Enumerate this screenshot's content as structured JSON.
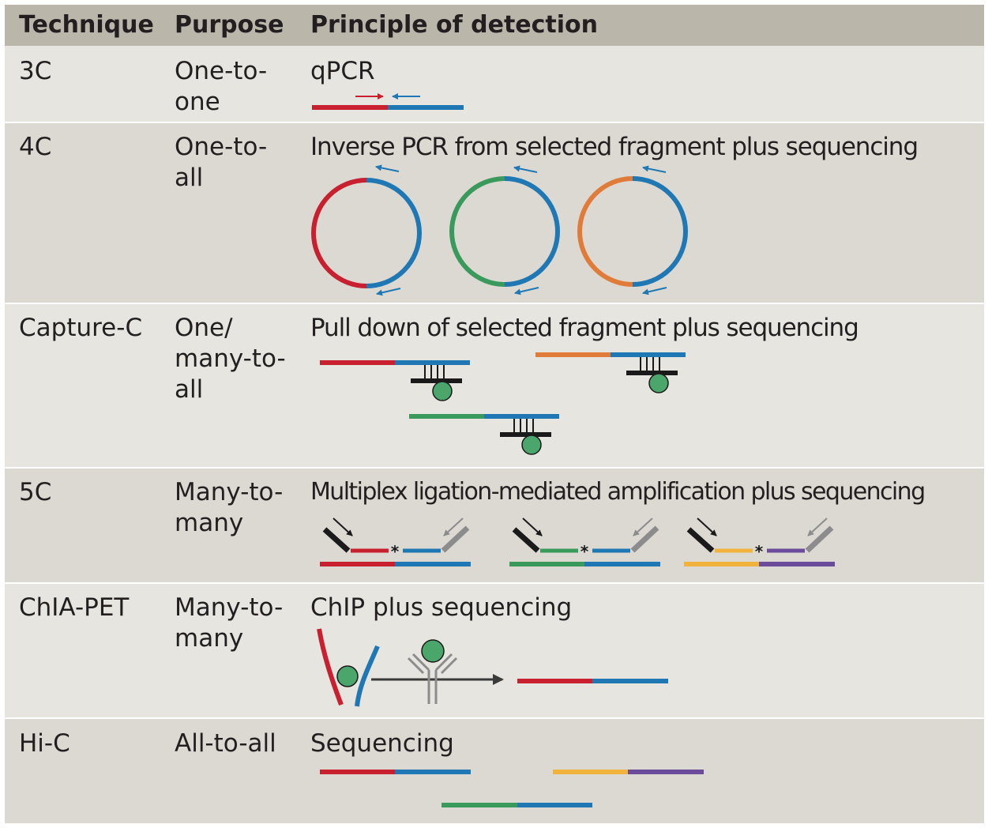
{
  "header": {
    "technique": "Technique",
    "purpose": "Purpose",
    "principle": "Principle of detection"
  },
  "rows": [
    {
      "technique": "3C",
      "purpose_lines": [
        "One-to-",
        "one"
      ],
      "principle": "qPCR"
    },
    {
      "technique": "4C",
      "purpose_lines": [
        "One-to-",
        "all"
      ],
      "principle": "Inverse PCR from selected fragment plus sequencing"
    },
    {
      "technique": "Capture-C",
      "purpose_lines": [
        "One/",
        "many-to-",
        "all"
      ],
      "principle": "Pull down of selected fragment plus sequencing"
    },
    {
      "technique": "5C",
      "purpose_lines": [
        "Many-to-",
        "many"
      ],
      "principle": "Multiplex ligation-mediated amplification plus sequencing"
    },
    {
      "technique": "ChIA-PET",
      "purpose_lines": [
        "Many-to-",
        "many"
      ],
      "principle": "ChIP plus sequencing"
    },
    {
      "technique": "Hi-C",
      "purpose_lines": [
        "All-to-all"
      ],
      "principle": "Sequencing"
    }
  ],
  "ligation_mark": "*",
  "colors": {
    "header_bg": "#bab7aa",
    "row_light": "#e7e5df",
    "row_dark": "#dbd9d2",
    "red": "#c8202f",
    "blue": "#1f78b4",
    "green": "#3a9a5b",
    "orange": "#e07b39",
    "yellow": "#f2b33d",
    "purple": "#6b4c9a",
    "bead": "#4aa66b",
    "grey": "#8c8c8c",
    "dark": "#1a1a1a"
  }
}
